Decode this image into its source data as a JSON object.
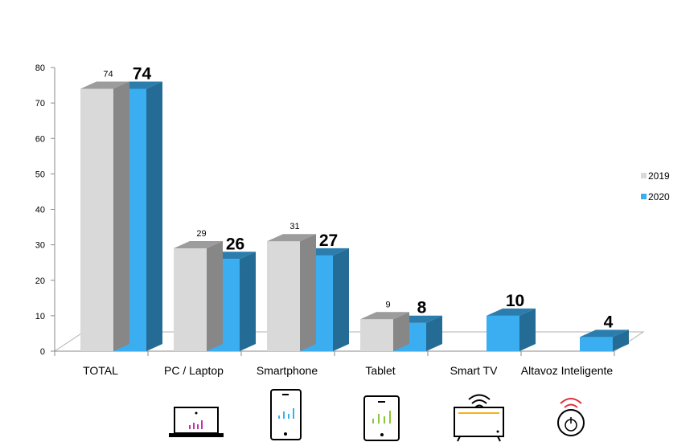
{
  "chart_data": {
    "type": "bar",
    "categories": [
      "TOTAL",
      "PC / Laptop",
      "Smartphone",
      "Tablet",
      "Smart TV",
      "Altavoz Inteligente"
    ],
    "series": [
      {
        "name": "2019",
        "values": [
          74,
          29,
          31,
          9,
          null,
          null
        ],
        "labels": [
          "74",
          "29",
          "31",
          "9",
          "",
          ""
        ]
      },
      {
        "name": "2020",
        "values": [
          74,
          26,
          27,
          8,
          10,
          4
        ],
        "labels": [
          "74",
          "26",
          "27",
          "8",
          "10",
          "4"
        ]
      }
    ],
    "yticks": [
      "0",
      "10",
      "20",
      "30",
      "40",
      "50",
      "60",
      "70",
      "80"
    ],
    "ylim": [
      0,
      80
    ],
    "grid": false,
    "legend": "right",
    "colors": {
      "2019": "#d9d9d9",
      "2020": "#3aaef0"
    }
  },
  "icons": [
    "laptop-icon",
    "smartphone-icon",
    "tablet-icon",
    "smart-tv-icon",
    "smart-speaker-icon"
  ]
}
